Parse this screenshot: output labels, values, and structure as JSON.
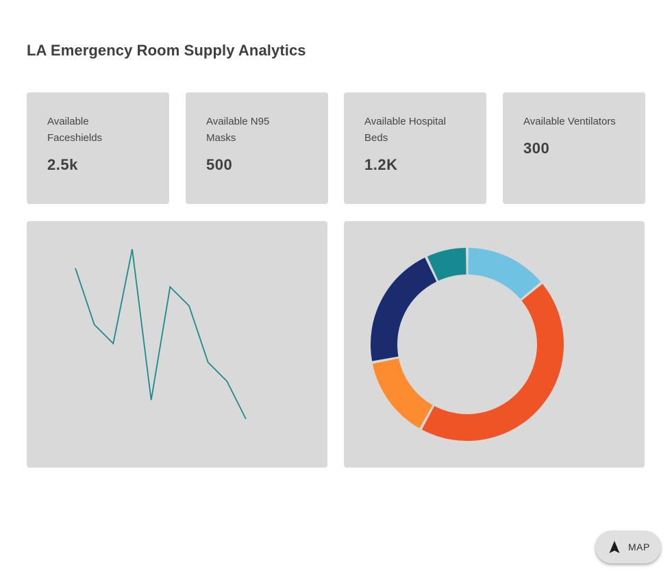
{
  "page": {
    "title": "LA Emergency Room Supply Analytics"
  },
  "stats": [
    {
      "label": "Available Faceshields",
      "value": "2.5k"
    },
    {
      "label": "Available N95 Masks",
      "value": "500"
    },
    {
      "label": "Available Hospital Beds",
      "value": "1.2K"
    },
    {
      "label": "Available Ventilators",
      "value": "300"
    }
  ],
  "map_button": {
    "label": "MAP",
    "icon": "navigation-arrow-icon"
  },
  "colors": {
    "card_background": "#d9d9d9",
    "line": "#1a8a8e"
  },
  "chart_data": [
    {
      "type": "line",
      "title": "",
      "xlabel": "",
      "ylabel": "",
      "grid": false,
      "axes_visible": false,
      "x": [
        0,
        1,
        2,
        3,
        4,
        5,
        6,
        7,
        8,
        9
      ],
      "series": [
        {
          "name": "",
          "color": "#1a8a8e",
          "values": [
            80,
            50,
            40,
            90,
            10,
            70,
            60,
            30,
            20,
            0
          ]
        }
      ],
      "ylim": [
        0,
        90
      ]
    },
    {
      "type": "pie",
      "variant": "donut",
      "title": "",
      "legend": "none",
      "slices": [
        {
          "label": "",
          "value": 14,
          "color": "#6fc2e2"
        },
        {
          "label": "",
          "value": 44,
          "color": "#ee5425"
        },
        {
          "label": "",
          "value": 14,
          "color": "#fd8c30"
        },
        {
          "label": "",
          "value": 21,
          "color": "#1b2c6e"
        },
        {
          "label": "",
          "value": 7,
          "color": "#178a91"
        }
      ]
    }
  ]
}
